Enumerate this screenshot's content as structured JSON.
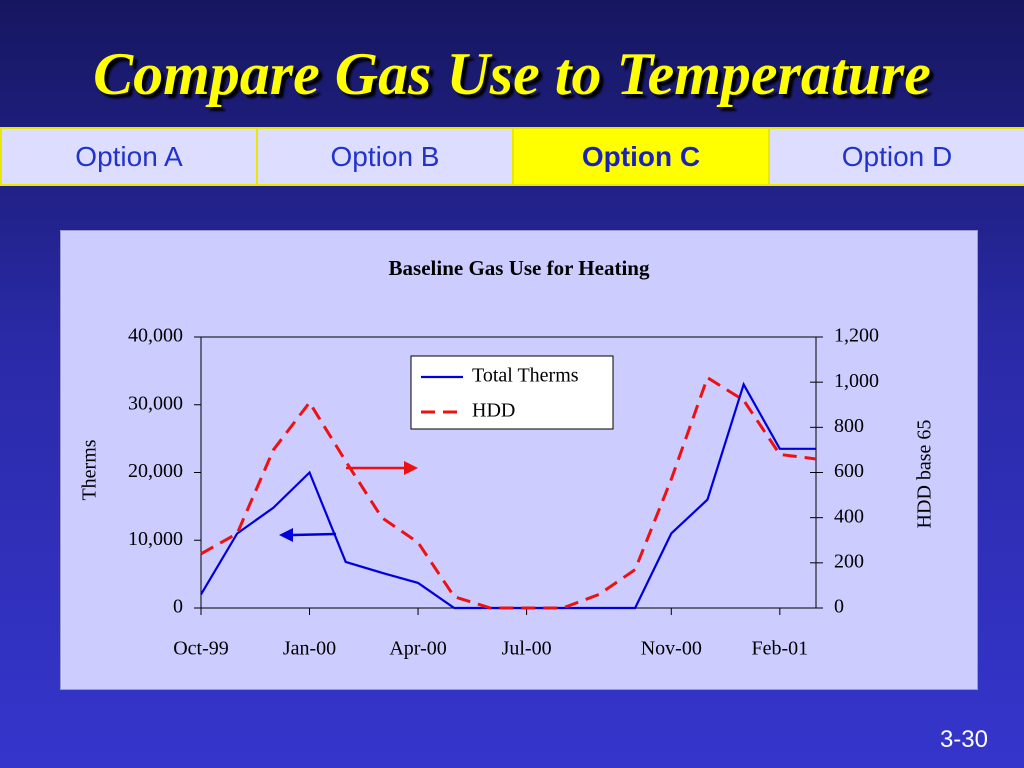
{
  "header": {
    "title": "Compare Gas Use to Temperature"
  },
  "tabs": {
    "items": [
      "Option A",
      "Option B",
      "Option C",
      "Option D"
    ],
    "selected": 2
  },
  "chart_data": {
    "type": "line",
    "title": "Baseline Gas Use for Heating",
    "y_label": "Therms",
    "y2_label": "HDD base 65",
    "categories": [
      "Oct-99",
      null,
      null,
      "Jan-00",
      null,
      null,
      "Apr-00",
      null,
      null,
      "Jul-00",
      null,
      null,
      null,
      "Nov-00",
      null,
      null,
      "Feb-01",
      null
    ],
    "series": [
      {
        "name": "Total Therms",
        "color": "#0000dd",
        "values": [
          2000,
          11000,
          14800,
          20000,
          6800,
          5200,
          3700,
          0,
          0,
          0,
          0,
          0,
          0,
          11000,
          16000,
          33000,
          23500,
          23500
        ]
      },
      {
        "name": "HDD",
        "color": "#ee1111",
        "axis": "y2",
        "dashed": true,
        "values": [
          240,
          330,
          700,
          910,
          650,
          400,
          290,
          50,
          0,
          0,
          0,
          60,
          170,
          570,
          1020,
          920,
          680,
          660
        ]
      }
    ],
    "ylim": [
      0,
      40000
    ],
    "yticks": [
      0,
      {
        "value": 10000,
        "label": "10,000"
      },
      {
        "value": 20000,
        "label": "20,000"
      },
      {
        "value": 30000,
        "label": "30,000"
      },
      {
        "value": 40000,
        "label": "40,000"
      }
    ],
    "y2lim": [
      0,
      1200
    ],
    "y2ticks": [
      0,
      200,
      400,
      600,
      800,
      {
        "value": 1000,
        "label": "1,000"
      },
      {
        "value": 1200,
        "label": "1,200"
      }
    ],
    "legend": "top-center"
  },
  "footer": {
    "page": "3-30"
  }
}
